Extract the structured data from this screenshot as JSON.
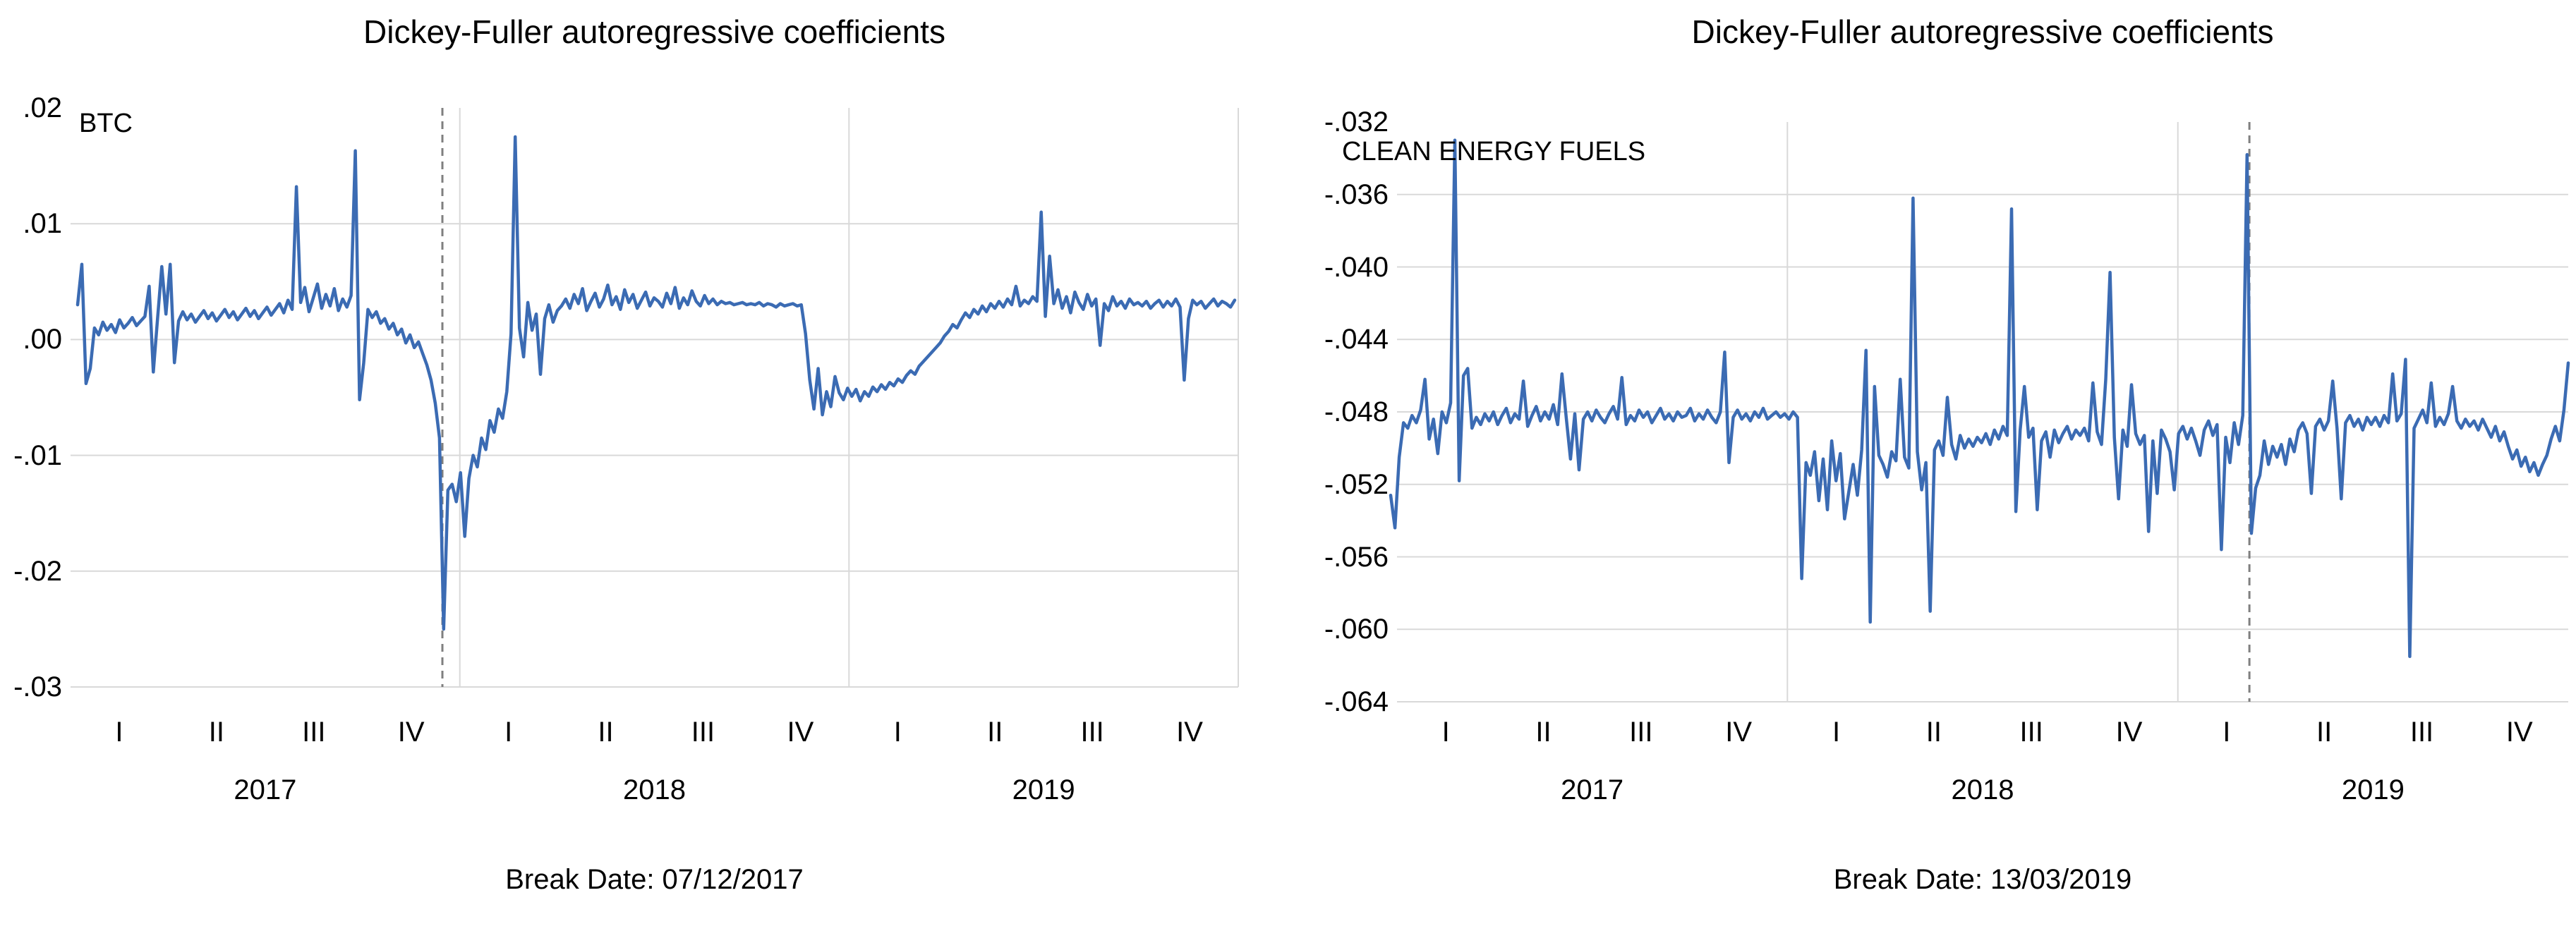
{
  "page": {
    "background": "#ffffff"
  },
  "chart_data": [
    {
      "type": "line",
      "title": "Dickey-Fuller autoregressive coefficients",
      "series_label": "BTC",
      "break_date_label": "Break Date: 07/12/2017",
      "line_color": "#3b6bb3",
      "grid_color": "#d9d9d9",
      "break_line_color": "#7f7f7f",
      "grid": "on",
      "legend": "none",
      "ylim": [
        -0.03,
        0.02
      ],
      "y_ticks": [
        ".02",
        ".01",
        ".00",
        "-.01",
        "-.02",
        "-.03"
      ],
      "y_tick_values": [
        0.02,
        0.01,
        0,
        -0.01,
        -0.02,
        -0.03
      ],
      "x_quarter_labels": [
        "I",
        "II",
        "III",
        "IV",
        "I",
        "II",
        "III",
        "IV",
        "I",
        "II",
        "III",
        "IV"
      ],
      "x_year_labels": [
        "2017",
        "2018",
        "2019"
      ],
      "year_boundary_quarters": [
        4,
        8,
        12
      ],
      "break_x_quarter": 3.821,
      "values": [
        0.003,
        0.0065,
        -0.0038,
        -0.0025,
        0.001,
        0.0004,
        0.0015,
        0.0008,
        0.0013,
        0.0006,
        0.0017,
        0.001,
        0.0014,
        0.0019,
        0.0012,
        0.0016,
        0.002,
        0.0046,
        -0.0028,
        0.0018,
        0.0063,
        0.0022,
        0.0065,
        -0.002,
        0.0016,
        0.0024,
        0.0017,
        0.0022,
        0.0015,
        0.002,
        0.0025,
        0.0018,
        0.0023,
        0.0016,
        0.0021,
        0.0026,
        0.0019,
        0.0024,
        0.0017,
        0.0022,
        0.0027,
        0.002,
        0.0025,
        0.0018,
        0.0023,
        0.0028,
        0.0021,
        0.0026,
        0.0031,
        0.0023,
        0.0034,
        0.0026,
        0.0132,
        0.0032,
        0.0045,
        0.0024,
        0.0036,
        0.0048,
        0.0027,
        0.0039,
        0.0029,
        0.0044,
        0.0025,
        0.0035,
        0.0028,
        0.0038,
        0.0163,
        -0.0052,
        -0.002,
        0.0026,
        0.0019,
        0.0024,
        0.0014,
        0.0018,
        0.0009,
        0.0014,
        0.0004,
        0.0009,
        -0.0003,
        0.0004,
        -0.0007,
        -0.0002,
        -0.0012,
        -0.0022,
        -0.0035,
        -0.0055,
        -0.0085,
        -0.025,
        -0.013,
        -0.0125,
        -0.014,
        -0.0115,
        -0.017,
        -0.012,
        -0.01,
        -0.011,
        -0.0085,
        -0.0095,
        -0.007,
        -0.008,
        -0.006,
        -0.0068,
        -0.0045,
        0.0005,
        0.0175,
        0.001,
        -0.0015,
        0.0032,
        0.0008,
        0.0022,
        -0.003,
        0.0018,
        0.003,
        0.0015,
        0.0025,
        0.0029,
        0.0035,
        0.0027,
        0.0039,
        0.0031,
        0.0044,
        0.0025,
        0.0033,
        0.004,
        0.0028,
        0.0035,
        0.0047,
        0.003,
        0.0037,
        0.0026,
        0.0043,
        0.0032,
        0.0039,
        0.0027,
        0.0034,
        0.0041,
        0.0029,
        0.0036,
        0.0033,
        0.0028,
        0.004,
        0.0031,
        0.0045,
        0.0027,
        0.0036,
        0.003,
        0.0042,
        0.0033,
        0.0029,
        0.0038,
        0.0031,
        0.0035,
        0.003,
        0.0033,
        0.0031,
        0.0032,
        0.003,
        0.0031,
        0.0032,
        0.003,
        0.0031,
        0.003,
        0.0032,
        0.0029,
        0.0031,
        0.003,
        0.0028,
        0.0031,
        0.0029,
        0.003,
        0.0031,
        0.0029,
        0.003,
        0.0005,
        -0.0035,
        -0.006,
        -0.0025,
        -0.0065,
        -0.0045,
        -0.0058,
        -0.0032,
        -0.0046,
        -0.0052,
        -0.0042,
        -0.0049,
        -0.0043,
        -0.0053,
        -0.0045,
        -0.0049,
        -0.0041,
        -0.0045,
        -0.0039,
        -0.0043,
        -0.0037,
        -0.004,
        -0.0034,
        -0.0037,
        -0.0031,
        -0.0027,
        -0.003,
        -0.0023,
        -0.0019,
        -0.0015,
        -0.0011,
        -0.0007,
        -0.0003,
        0.0003,
        0.0007,
        0.0013,
        0.001,
        0.0017,
        0.0023,
        0.0019,
        0.0026,
        0.0022,
        0.0029,
        0.0024,
        0.0031,
        0.0027,
        0.0033,
        0.0028,
        0.0035,
        0.003,
        0.0046,
        0.0029,
        0.0034,
        0.0031,
        0.0037,
        0.0033,
        0.011,
        0.002,
        0.0072,
        0.0031,
        0.0043,
        0.0027,
        0.0037,
        0.0023,
        0.0041,
        0.0032,
        0.0026,
        0.0039,
        0.0029,
        0.0035,
        -0.0005,
        0.0031,
        0.0025,
        0.0037,
        0.0029,
        0.0033,
        0.0027,
        0.0035,
        0.003,
        0.0032,
        0.0029,
        0.0033,
        0.0027,
        0.0031,
        0.0034,
        0.0028,
        0.0033,
        0.0029,
        0.0035,
        0.0028,
        -0.0035,
        0.0018,
        0.0034,
        0.003,
        0.0033,
        0.0027,
        0.0031,
        0.0035,
        0.0029,
        0.0033,
        0.0031,
        0.0028,
        0.0034
      ]
    },
    {
      "type": "line",
      "title": "Dickey-Fuller autoregressive coefficients",
      "series_label": "CLEAN ENERGY FUELS",
      "break_date_label": "Break Date: 13/03/2019",
      "line_color": "#3b6bb3",
      "grid_color": "#d9d9d9",
      "break_line_color": "#7f7f7f",
      "grid": "on",
      "legend": "none",
      "ylim": [
        -0.064,
        -0.032
      ],
      "y_ticks": [
        "-.032",
        "-.036",
        "-.040",
        "-.044",
        "-.048",
        "-.052",
        "-.056",
        "-.060",
        "-.064"
      ],
      "y_tick_values": [
        -0.032,
        -0.036,
        -0.04,
        -0.044,
        -0.048,
        -0.052,
        -0.056,
        -0.06,
        -0.064
      ],
      "x_quarter_labels": [
        "I",
        "II",
        "III",
        "IV",
        "I",
        "II",
        "III",
        "IV",
        "I",
        "II",
        "III",
        "IV"
      ],
      "x_year_labels": [
        "2017",
        "2018",
        "2019"
      ],
      "year_boundary_quarters": [
        4,
        8
      ],
      "break_x_quarter": 8.733,
      "values": [
        -0.0526,
        -0.0544,
        -0.0505,
        -0.0486,
        -0.0489,
        -0.0482,
        -0.0486,
        -0.0479,
        -0.0462,
        -0.0495,
        -0.0484,
        -0.0503,
        -0.048,
        -0.0486,
        -0.0475,
        -0.033,
        -0.0518,
        -0.046,
        -0.0456,
        -0.0489,
        -0.0483,
        -0.0487,
        -0.0481,
        -0.0485,
        -0.048,
        -0.0487,
        -0.0482,
        -0.0478,
        -0.0486,
        -0.0481,
        -0.0484,
        -0.0463,
        -0.0488,
        -0.0482,
        -0.0477,
        -0.0485,
        -0.048,
        -0.0484,
        -0.0476,
        -0.0487,
        -0.0459,
        -0.0483,
        -0.0506,
        -0.0481,
        -0.0512,
        -0.0484,
        -0.048,
        -0.0485,
        -0.0479,
        -0.0483,
        -0.0486,
        -0.0481,
        -0.0477,
        -0.0484,
        -0.0461,
        -0.0487,
        -0.0482,
        -0.0485,
        -0.0479,
        -0.0483,
        -0.048,
        -0.0486,
        -0.0482,
        -0.0478,
        -0.0484,
        -0.0481,
        -0.0485,
        -0.048,
        -0.0483,
        -0.0482,
        -0.0478,
        -0.0485,
        -0.0481,
        -0.0484,
        -0.0479,
        -0.0483,
        -0.0486,
        -0.048,
        -0.0447,
        -0.0508,
        -0.0483,
        -0.0479,
        -0.0484,
        -0.0481,
        -0.0485,
        -0.048,
        -0.0483,
        -0.0478,
        -0.0484,
        -0.0482,
        -0.048,
        -0.0483,
        -0.0481,
        -0.0484,
        -0.048,
        -0.0483,
        -0.0572,
        -0.0508,
        -0.0515,
        -0.0502,
        -0.0529,
        -0.0506,
        -0.0534,
        -0.0496,
        -0.0518,
        -0.0503,
        -0.0539,
        -0.0524,
        -0.0509,
        -0.0526,
        -0.0501,
        -0.0446,
        -0.0596,
        -0.0466,
        -0.0504,
        -0.0509,
        -0.0516,
        -0.0502,
        -0.0507,
        -0.0462,
        -0.0505,
        -0.0511,
        -0.0362,
        -0.0502,
        -0.0523,
        -0.0508,
        -0.059,
        -0.0501,
        -0.0496,
        -0.0504,
        -0.0472,
        -0.0498,
        -0.0506,
        -0.0493,
        -0.05,
        -0.0495,
        -0.0499,
        -0.0494,
        -0.0497,
        -0.0492,
        -0.0498,
        -0.049,
        -0.0495,
        -0.0488,
        -0.0493,
        -0.0368,
        -0.0535,
        -0.049,
        -0.0466,
        -0.0494,
        -0.0489,
        -0.0534,
        -0.0496,
        -0.0491,
        -0.0505,
        -0.049,
        -0.0497,
        -0.0492,
        -0.0488,
        -0.0495,
        -0.049,
        -0.0493,
        -0.0489,
        -0.0496,
        -0.0464,
        -0.0491,
        -0.0498,
        -0.0462,
        -0.0403,
        -0.0494,
        -0.0528,
        -0.049,
        -0.0499,
        -0.0465,
        -0.0492,
        -0.0498,
        -0.0493,
        -0.0546,
        -0.0496,
        -0.0525,
        -0.049,
        -0.0495,
        -0.0502,
        -0.0523,
        -0.0492,
        -0.0488,
        -0.0495,
        -0.0489,
        -0.0496,
        -0.0504,
        -0.049,
        -0.0485,
        -0.0493,
        -0.0487,
        -0.0556,
        -0.0494,
        -0.0508,
        -0.0486,
        -0.0498,
        -0.0482,
        -0.0338,
        -0.0547,
        -0.0522,
        -0.0515,
        -0.0496,
        -0.0509,
        -0.0499,
        -0.0505,
        -0.0498,
        -0.0509,
        -0.0495,
        -0.0502,
        -0.049,
        -0.0486,
        -0.0492,
        -0.0525,
        -0.0488,
        -0.0484,
        -0.049,
        -0.0485,
        -0.0463,
        -0.0489,
        -0.0528,
        -0.0486,
        -0.0482,
        -0.0488,
        -0.0484,
        -0.049,
        -0.0483,
        -0.0487,
        -0.0483,
        -0.0488,
        -0.0482,
        -0.0486,
        -0.0459,
        -0.0485,
        -0.0481,
        -0.0451,
        -0.0615,
        -0.0489,
        -0.0484,
        -0.0479,
        -0.0486,
        -0.0464,
        -0.0488,
        -0.0483,
        -0.0487,
        -0.0481,
        -0.0466,
        -0.0485,
        -0.0489,
        -0.0484,
        -0.0488,
        -0.0485,
        -0.049,
        -0.0484,
        -0.0489,
        -0.0494,
        -0.0488,
        -0.0496,
        -0.0491,
        -0.0499,
        -0.0506,
        -0.0501,
        -0.051,
        -0.0505,
        -0.0513,
        -0.0508,
        -0.0515,
        -0.0509,
        -0.0504,
        -0.0495,
        -0.0488,
        -0.0496,
        -0.0479,
        -0.0453
      ]
    }
  ]
}
